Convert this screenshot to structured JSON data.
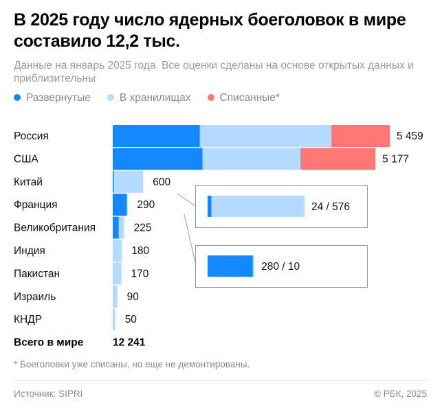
{
  "title": "В 2025 году число ядерных боеголовок в мире составило 12,2 тыс.",
  "subtitle": "Данные на январь 2025 года. Все оценки сделаны на основе открытых данных и приблизительны",
  "footnote": "* Боеголовки уже списаны, но еще не демонтированы.",
  "source": "Источник: SIPRI",
  "copyright": "© РБК, 2025",
  "colors": {
    "deployed": "#1487fe",
    "stored": "#b5d9ff",
    "retired": "#ff7676"
  },
  "chart_data": {
    "type": "bar",
    "orientation": "horizontal",
    "stacked": true,
    "legend_position": "top-left",
    "series_names": [
      "Развернутые",
      "В хранилищах",
      "Списанные*"
    ],
    "categories": [
      "Россия",
      "США",
      "Китай",
      "Франция",
      "Великобритания",
      "Индия",
      "Пакистан",
      "Израиль",
      "КНДР"
    ],
    "series": [
      {
        "name": "Развернутые",
        "values": [
          1718,
          1770,
          24,
          280,
          120,
          0,
          0,
          0,
          0
        ]
      },
      {
        "name": "В хранилищах",
        "values": [
          2591,
          1930,
          576,
          10,
          105,
          180,
          170,
          90,
          50
        ]
      },
      {
        "name": "Списанные*",
        "values": [
          1150,
          1477,
          0,
          0,
          0,
          0,
          0,
          0,
          0
        ]
      }
    ],
    "total_labels": [
      "5 459",
      "5 177",
      "600",
      "290",
      "225",
      "180",
      "170",
      "90",
      "50"
    ],
    "total_row": {
      "label": "Всего в мире",
      "value": "12 241"
    },
    "insets": [
      {
        "category": "Китай",
        "label": "24 / 576",
        "values": [
          24,
          576
        ]
      },
      {
        "category": "Франция",
        "label": "280 / 10",
        "values": [
          280,
          10
        ]
      }
    ]
  }
}
